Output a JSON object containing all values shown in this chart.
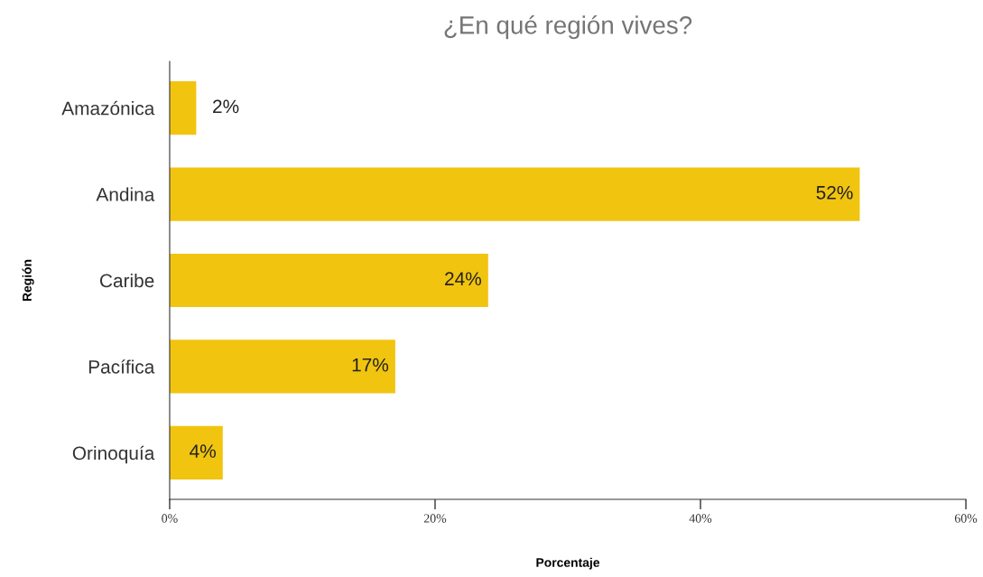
{
  "chart_data": {
    "type": "bar",
    "orientation": "horizontal",
    "title": "¿En qué región vives?",
    "xlabel": "Porcentaje",
    "ylabel": "Región",
    "categories": [
      "Amazónica",
      "Andina",
      "Caribe",
      "Pacífica",
      "Orinoquía"
    ],
    "values": [
      2,
      52,
      24,
      17,
      4
    ],
    "value_labels": [
      "2%",
      "52%",
      "24%",
      "17%",
      "4%"
    ],
    "color": "#f1c40f",
    "xlim": [
      0,
      60
    ],
    "xticks": [
      {
        "value": 0,
        "label": "0%"
      },
      {
        "value": 20,
        "label": "20%"
      },
      {
        "value": 40,
        "label": "40%"
      },
      {
        "value": 60,
        "label": "60%"
      }
    ],
    "grid": false,
    "legend": false
  }
}
